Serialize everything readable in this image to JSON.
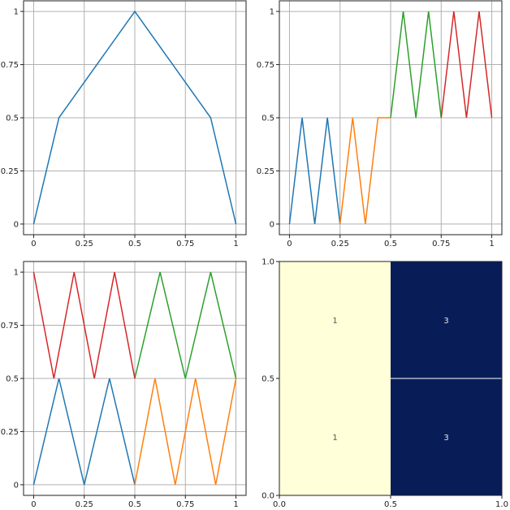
{
  "colors": {
    "series_1": "#1f77b4",
    "series_2": "#ff7f0e",
    "series_3": "#2ca02c",
    "series_4": "#d62728",
    "heat_low": "#ffffd9",
    "heat_high": "#081d58"
  },
  "chart_data": [
    {
      "type": "line",
      "grid": true,
      "xlim": [
        0,
        1
      ],
      "ylim": [
        0,
        1
      ],
      "xticks": [
        "0",
        "0.25",
        "0.5",
        "0.75",
        "1"
      ],
      "yticks": [
        "0",
        "0.25",
        "0.5",
        "0.75",
        "1"
      ],
      "series": [
        {
          "color": "#1f77b4",
          "x": [
            0,
            0.125,
            0.5,
            0.875,
            1
          ],
          "y": [
            0,
            0.5,
            1,
            0.5,
            0
          ]
        }
      ]
    },
    {
      "type": "line",
      "grid": true,
      "xlim": [
        0,
        1
      ],
      "ylim": [
        0,
        1
      ],
      "xticks": [
        "0",
        "0.25",
        "0.5",
        "0.75",
        "1"
      ],
      "yticks": [
        "0",
        "0.25",
        "0.5",
        "0.75",
        "1"
      ],
      "series": [
        {
          "color": "#1f77b4",
          "x": [
            0,
            0.0625,
            0.125,
            0.1875,
            0.25
          ],
          "y": [
            0,
            0.5,
            0,
            0.5,
            0
          ]
        },
        {
          "color": "#ff7f0e",
          "x": [
            0.25,
            0.3125,
            0.375,
            0.4375,
            0.5
          ],
          "y": [
            0,
            0.5,
            0,
            0.5,
            0.5
          ]
        },
        {
          "color": "#2ca02c",
          "x": [
            0.5,
            0.5625,
            0.625,
            0.6875,
            0.75
          ],
          "y": [
            0.5,
            1,
            0.5,
            1,
            0.5
          ]
        },
        {
          "color": "#d62728",
          "x": [
            0.75,
            0.8125,
            0.875,
            0.9375,
            1
          ],
          "y": [
            0.5,
            1,
            0.5,
            1,
            0.5
          ]
        }
      ]
    },
    {
      "type": "line",
      "grid": true,
      "xlim": [
        0,
        1
      ],
      "ylim": [
        0,
        1
      ],
      "xticks": [
        "0",
        "0.25",
        "0.5",
        "0.75",
        "1"
      ],
      "yticks": [
        "0",
        "0.25",
        "0.5",
        "0.75",
        "1"
      ],
      "series": [
        {
          "color": "#1f77b4",
          "x": [
            0,
            0.125,
            0.25,
            0.375,
            0.5
          ],
          "y": [
            0,
            0.5,
            0,
            0.5,
            0
          ]
        },
        {
          "color": "#ff7f0e",
          "x": [
            0.5,
            0.6,
            0.7,
            0.8,
            0.9,
            1
          ],
          "y": [
            0,
            0.5,
            0,
            0.5,
            0,
            0.5
          ]
        },
        {
          "color": "#2ca02c",
          "x": [
            0.5,
            0.625,
            0.75,
            0.875,
            1
          ],
          "y": [
            0.5,
            1,
            0.5,
            1,
            0.5
          ]
        },
        {
          "color": "#d62728",
          "x": [
            0,
            0.1,
            0.2,
            0.3,
            0.4,
            0.5
          ],
          "y": [
            1,
            0.5,
            1,
            0.5,
            1,
            0.5
          ]
        }
      ]
    },
    {
      "type": "heatmap",
      "xlim": [
        0,
        1
      ],
      "ylim": [
        0,
        1
      ],
      "xticks": [
        "0.0",
        "0.5",
        "1.0"
      ],
      "yticks": [
        "0.0",
        "0.5",
        "1.0"
      ],
      "cells": [
        {
          "x0": 0,
          "x1": 0.5,
          "y0": 0.5,
          "y1": 1,
          "value": 1,
          "label": "1"
        },
        {
          "x0": 0.5,
          "x1": 1,
          "y0": 0.5,
          "y1": 1,
          "value": 3,
          "label": "3"
        },
        {
          "x0": 0,
          "x1": 0.5,
          "y0": 0,
          "y1": 0.5,
          "value": 1,
          "label": "1"
        },
        {
          "x0": 0.5,
          "x1": 1,
          "y0": 0,
          "y1": 0.5,
          "value": 3,
          "label": "3"
        }
      ]
    }
  ]
}
